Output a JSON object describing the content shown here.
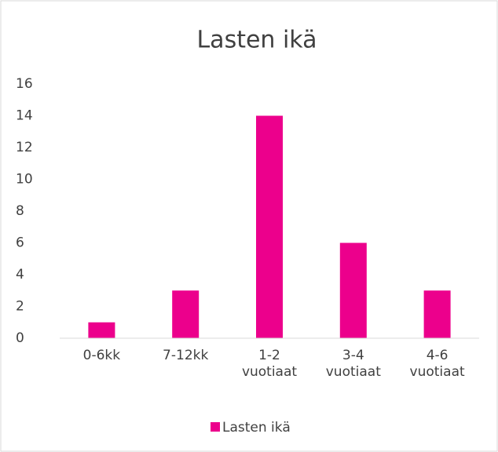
{
  "chart_data": {
    "type": "bar",
    "title": "Lasten ikä",
    "categories": [
      "0-6kk",
      "7-12kk",
      "1-2 vuotiaat",
      "3-4 vuotiaat",
      "4-6 vuotiaat"
    ],
    "series": [
      {
        "name": "Lasten ikä",
        "color": "#ec008c",
        "values": [
          1,
          3,
          14,
          6,
          3
        ]
      }
    ],
    "ylim": [
      0,
      16
    ],
    "yticks": [
      0,
      2,
      4,
      6,
      8,
      10,
      12,
      14,
      16
    ],
    "grid": false,
    "legend": "bottom"
  }
}
